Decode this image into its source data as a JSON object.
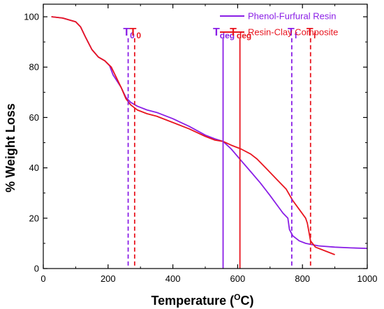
{
  "chart_data": {
    "type": "line",
    "xlabel_main": "Temperature (",
    "xlabel_sup": "O",
    "xlabel_unit": "C)",
    "ylabel": "% Weight Loss",
    "xlim": [
      0,
      1000
    ],
    "ylim": [
      0,
      105
    ],
    "x_ticks": [
      0,
      200,
      400,
      600,
      800,
      1000
    ],
    "y_ticks": [
      0,
      20,
      40,
      60,
      80,
      100
    ],
    "grid": false,
    "legend_position": "top-right",
    "series": [
      {
        "name": "Phenol-Furfural Resin",
        "color": "#8a1ee6",
        "x": [
          25,
          60,
          100,
          115,
          130,
          150,
          170,
          190,
          205,
          215,
          225,
          240,
          255,
          270,
          290,
          320,
          350,
          400,
          450,
          500,
          530,
          555,
          580,
          610,
          640,
          670,
          700,
          720,
          740,
          755,
          760,
          770,
          790,
          810,
          830,
          850,
          900,
          950,
          1000
        ],
        "y": [
          100,
          99.5,
          98,
          96,
          92,
          87,
          84,
          82.5,
          80.5,
          77,
          75,
          72,
          68,
          66,
          64.5,
          63,
          62,
          59.5,
          56.5,
          53,
          51.5,
          50.5,
          47.5,
          43,
          38.5,
          34,
          29,
          25.5,
          22,
          20,
          15.5,
          13,
          11,
          10,
          9.5,
          9,
          8.5,
          8.2,
          8
        ]
      },
      {
        "name": "Resin-Clay Composite",
        "color": "#e8151f",
        "x": [
          25,
          60,
          100,
          115,
          130,
          150,
          170,
          190,
          210,
          225,
          240,
          255,
          270,
          290,
          320,
          350,
          400,
          450,
          500,
          530,
          555,
          580,
          610,
          640,
          660,
          690,
          720,
          750,
          770,
          790,
          810,
          815,
          825,
          840,
          860,
          880,
          900
        ],
        "y": [
          100,
          99.5,
          98,
          96,
          92,
          87,
          84,
          82.5,
          80,
          76,
          72,
          67.5,
          65,
          63,
          61.5,
          60.5,
          58,
          55.5,
          52.5,
          51,
          50.5,
          49,
          47.5,
          45.5,
          43.5,
          39.5,
          35.5,
          31.5,
          27,
          23.5,
          20,
          18,
          11,
          8.5,
          7.5,
          6.5,
          5.5
        ]
      }
    ],
    "markers": [
      {
        "label": "T",
        "sub": "0",
        "x": 262,
        "color": "#8a1ee6",
        "style": "dashed"
      },
      {
        "label": "T",
        "sub": "0",
        "x": 282,
        "color": "#e8151f",
        "style": "dashed"
      },
      {
        "label": "T",
        "sub": "deg",
        "x": 555,
        "color": "#8a1ee6",
        "style": "solid"
      },
      {
        "label": "T",
        "sub": "deg",
        "x": 607,
        "color": "#e8151f",
        "style": "solid"
      },
      {
        "label": "T",
        "sub": "f",
        "x": 767,
        "color": "#8a1ee6",
        "style": "dashed"
      },
      {
        "label": "T",
        "sub": "f",
        "x": 825,
        "color": "#e8151f",
        "style": "dashed"
      }
    ]
  }
}
